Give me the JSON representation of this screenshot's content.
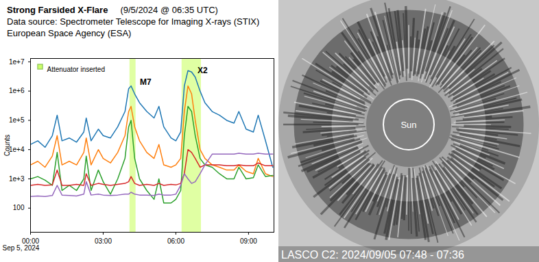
{
  "chart_data": {
    "type": "line",
    "title": "Strong Farsided X-Flare",
    "title_date": "(9/5/2024 @ 06:35 UTC)",
    "subtitle": [
      "Data source: Spectrometer Telescope for Imaging X-rays (STIX)",
      "European Space Agency (ESA)"
    ],
    "ylabel": "Counts",
    "xlabel": "Sep 5, 2024",
    "log": "y",
    "grid": false,
    "xlim": [
      0,
      10.05
    ],
    "xticks": [
      {
        "value": 0,
        "label": "00:00"
      },
      {
        "value": 3,
        "label": "03:00"
      },
      {
        "value": 6,
        "label": "06:00"
      },
      {
        "value": 9,
        "label": "09:00"
      }
    ],
    "ylim": [
      15,
      13000000
    ],
    "yticks": [
      100,
      {
        "value": 1000,
        "label": "1e+3"
      },
      {
        "value": 10000,
        "label": "1e+4"
      },
      {
        "value": 100000,
        "label": "1e+5"
      },
      {
        "value": 1000000,
        "label": "1e+6"
      },
      {
        "value": 10000000,
        "label": "1e+7"
      }
    ],
    "x": [
      0,
      0.3,
      0.6,
      0.9,
      1.1,
      1.3,
      1.6,
      1.9,
      2.2,
      2.3,
      2.5,
      2.8,
      3.0,
      3.3,
      3.6,
      3.9,
      4.05,
      4.15,
      4.3,
      4.5,
      4.8,
      5.1,
      5.3,
      5.5,
      5.8,
      6.0,
      6.2,
      6.35,
      6.5,
      6.65,
      6.8,
      7.0,
      7.2,
      7.5,
      7.8,
      8.1,
      8.4,
      8.6,
      8.9,
      9.2,
      9.4,
      9.7,
      10.0
    ],
    "series": [
      {
        "color": "#1f77b4",
        "values": [
          15000,
          20000,
          12000,
          30000,
          150000,
          20000,
          25000,
          18000,
          40000,
          120000,
          20000,
          50000,
          30000,
          25000,
          60000,
          200000,
          1200000,
          1500000,
          800000,
          400000,
          200000,
          120000,
          300000,
          60000,
          25000,
          20000,
          40000,
          1500000,
          5000000,
          4500000,
          3000000,
          1000000,
          400000,
          200000,
          150000,
          100000,
          80000,
          200000,
          50000,
          40000,
          150000,
          20000,
          2500
        ]
      },
      {
        "color": "#ff7f0e",
        "values": [
          3000,
          4000,
          2500,
          6000,
          30000,
          3000,
          4000,
          3000,
          8000,
          25000,
          3000,
          10000,
          5000,
          3500,
          8000,
          30000,
          200000,
          300000,
          60000,
          20000,
          8000,
          5000,
          15000,
          3000,
          2500,
          3000,
          5000,
          200000,
          1500000,
          800000,
          100000,
          10000,
          5000,
          3000,
          2500,
          2000,
          2000,
          3000,
          1800,
          1500,
          5000,
          1500,
          1200
        ]
      },
      {
        "color": "#2ca02c",
        "values": [
          1000,
          1200,
          900,
          600,
          8000,
          400,
          600,
          400,
          1000,
          6000,
          400,
          2000,
          800,
          300,
          1000,
          5000,
          60000,
          100000,
          5000,
          1000,
          400,
          200,
          1000,
          150,
          150,
          200,
          400,
          30000,
          300000,
          200000,
          30000,
          5000,
          3000,
          2500,
          1500,
          1000,
          1000,
          2500,
          1000,
          1100,
          3000,
          1200,
          1300
        ]
      },
      {
        "color": "#d62728",
        "values": [
          600,
          650,
          600,
          620,
          2000,
          600,
          600,
          650,
          600,
          1500,
          600,
          700,
          650,
          600,
          650,
          700,
          800,
          1200,
          700,
          600,
          650,
          600,
          700,
          600,
          650,
          620,
          700,
          1500,
          10000,
          8000,
          5000,
          2500,
          3000,
          3000,
          3000,
          2800,
          2800,
          3000,
          2800,
          2800,
          3500,
          2800,
          2800
        ]
      },
      {
        "color": "#9467bd",
        "values": [
          250,
          260,
          250,
          270,
          600,
          280,
          270,
          260,
          300,
          800,
          280,
          300,
          280,
          270,
          280,
          300,
          300,
          350,
          300,
          280,
          280,
          270,
          300,
          280,
          280,
          300,
          600,
          1500,
          1000,
          700,
          800,
          1500,
          3000,
          7000,
          7000,
          7000,
          7000,
          7500,
          7000,
          7000,
          7500,
          7000,
          7000
        ]
      }
    ],
    "attenuator": {
      "label": "Attenuator inserted",
      "color": "#ccff66",
      "intervals": [
        [
          4.1,
          4.35
        ],
        [
          6.25,
          7.05
        ]
      ]
    },
    "annotations": [
      {
        "text": "M7",
        "x": 4.75,
        "y": 2000000
      },
      {
        "text": "X2",
        "x": 7.1,
        "y": 5000000
      }
    ]
  },
  "image": {
    "type": "coronagraph",
    "center_label": "Sun",
    "caption": "LASCO C2: 2024/09/05 07:48 - 07:36"
  }
}
